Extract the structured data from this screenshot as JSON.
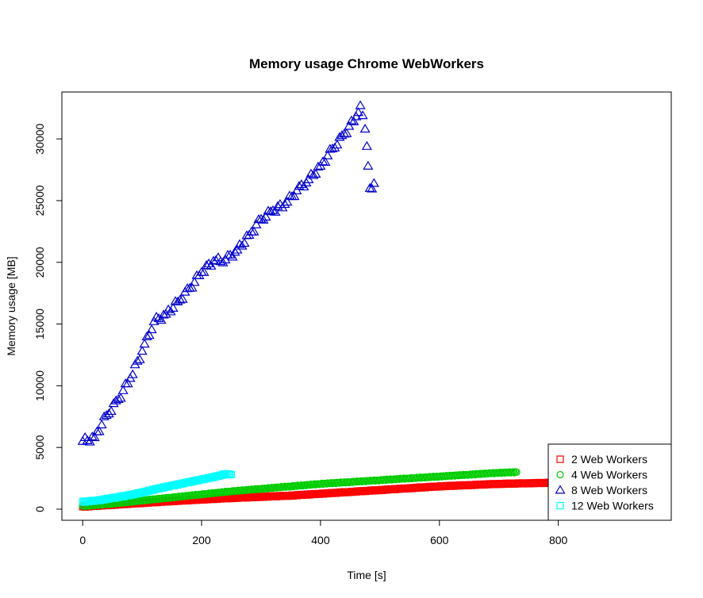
{
  "chart_data": {
    "type": "scatter",
    "title": "Memory usage Chrome WebWorkers",
    "xlabel": "Time [s]",
    "ylabel": "Memory usage [MB]",
    "xlim": [
      -35,
      990
    ],
    "ylim": [
      -900,
      33800
    ],
    "x_ticks": [
      0,
      200,
      400,
      600,
      800
    ],
    "y_ticks": [
      0,
      5000,
      10000,
      15000,
      20000,
      25000,
      30000
    ],
    "legend_position": "bottom-right",
    "series": [
      {
        "name": "2 Web Workers",
        "marker": "square",
        "color": "#ff0000",
        "points": [
          [
            0,
            200
          ],
          [
            50,
            350
          ],
          [
            100,
            500
          ],
          [
            150,
            650
          ],
          [
            200,
            780
          ],
          [
            250,
            900
          ],
          [
            300,
            1000
          ],
          [
            350,
            1100
          ],
          [
            400,
            1250
          ],
          [
            450,
            1400
          ],
          [
            500,
            1550
          ],
          [
            550,
            1700
          ],
          [
            600,
            1850
          ],
          [
            650,
            1950
          ],
          [
            700,
            2050
          ],
          [
            750,
            2100
          ],
          [
            800,
            2150
          ],
          [
            830,
            2150
          ]
        ]
      },
      {
        "name": "4 Web Workers",
        "marker": "circle",
        "color": "#00cd00",
        "points": [
          [
            0,
            250
          ],
          [
            50,
            450
          ],
          [
            100,
            700
          ],
          [
            150,
            950
          ],
          [
            200,
            1200
          ],
          [
            250,
            1450
          ],
          [
            300,
            1650
          ],
          [
            350,
            1850
          ],
          [
            400,
            2050
          ],
          [
            450,
            2200
          ],
          [
            500,
            2350
          ],
          [
            550,
            2500
          ],
          [
            600,
            2650
          ],
          [
            650,
            2800
          ],
          [
            700,
            2950
          ],
          [
            730,
            3000
          ]
        ]
      },
      {
        "name": "8 Web Workers",
        "marker": "triangle",
        "color": "#0000cd",
        "points": [
          [
            0,
            5500
          ],
          [
            20,
            5800
          ],
          [
            40,
            7600
          ],
          [
            60,
            8900
          ],
          [
            80,
            10600
          ],
          [
            100,
            12800
          ],
          [
            120,
            15200
          ],
          [
            140,
            15800
          ],
          [
            160,
            16800
          ],
          [
            180,
            17900
          ],
          [
            200,
            19200
          ],
          [
            220,
            20100
          ],
          [
            240,
            20200
          ],
          [
            260,
            21000
          ],
          [
            280,
            22200
          ],
          [
            300,
            23500
          ],
          [
            320,
            24200
          ],
          [
            340,
            24700
          ],
          [
            360,
            25800
          ],
          [
            380,
            26700
          ],
          [
            400,
            27800
          ],
          [
            420,
            29200
          ],
          [
            440,
            30400
          ],
          [
            460,
            31800
          ],
          [
            467,
            32700
          ],
          [
            475,
            30800
          ],
          [
            478,
            29400
          ],
          [
            480,
            27800
          ],
          [
            483,
            26000
          ],
          [
            490,
            26400
          ]
        ]
      },
      {
        "name": "12 Web Workers",
        "marker": "square",
        "color": "#00ffff",
        "points": [
          [
            0,
            600
          ],
          [
            25,
            700
          ],
          [
            50,
            900
          ],
          [
            75,
            1100
          ],
          [
            100,
            1350
          ],
          [
            125,
            1650
          ],
          [
            150,
            1900
          ],
          [
            175,
            2150
          ],
          [
            200,
            2400
          ],
          [
            225,
            2650
          ],
          [
            240,
            2850
          ],
          [
            250,
            2800
          ]
        ]
      }
    ]
  }
}
